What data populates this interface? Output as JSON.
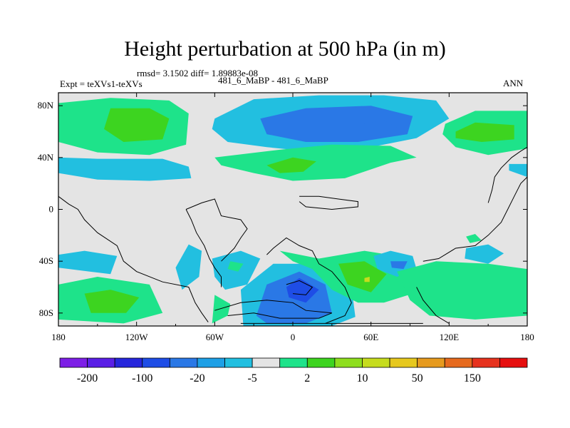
{
  "chart_data": {
    "type": "heatmap",
    "title": "Height perturbation at 500 hPa (in m)",
    "stats": "rmsd= 3.1502 diff= 1.89883e-08",
    "left_label": "Expt = teXVs1-teXVs",
    "center_label": "481_6_MaBP - 481_6_MaBP",
    "right_label": "ANN",
    "xlim": [
      -180,
      180
    ],
    "ylim": [
      -90,
      90
    ],
    "x_ticks": [
      {
        "value": -180,
        "label": "180"
      },
      {
        "value": -120,
        "label": "120W"
      },
      {
        "value": -60,
        "label": "60W"
      },
      {
        "value": 0,
        "label": "0"
      },
      {
        "value": 60,
        "label": "60E"
      },
      {
        "value": 120,
        "label": "120E"
      },
      {
        "value": 180,
        "label": "180"
      }
    ],
    "y_ticks": [
      {
        "value": 80,
        "label": "80N"
      },
      {
        "value": 40,
        "label": "40N"
      },
      {
        "value": 0,
        "label": "0"
      },
      {
        "value": -40,
        "label": "40S"
      },
      {
        "value": -80,
        "label": "80S"
      }
    ],
    "colorbar": {
      "colors": [
        "#7d1fe6",
        "#5a1fe6",
        "#2626dc",
        "#1e4de6",
        "#2a78e6",
        "#1ea0e6",
        "#22bfe0",
        "#e4e4e4",
        "#1ee38a",
        "#3dd420",
        "#8ede1e",
        "#c6dc1e",
        "#e6c81e",
        "#e69a1e",
        "#e66a1e",
        "#e6321e",
        "#e60f0f"
      ],
      "tick_labels": [
        "-200",
        "-100",
        "-20",
        "-5",
        "2",
        "10",
        "50",
        "150"
      ]
    },
    "regions": [
      {
        "level": 2,
        "value": "2 to 10",
        "points": [
          [
            -180,
            82
          ],
          [
            -140,
            86
          ],
          [
            -95,
            84
          ],
          [
            -80,
            74
          ],
          [
            -82,
            50
          ],
          [
            -110,
            42
          ],
          [
            -150,
            44
          ],
          [
            -180,
            52
          ]
        ]
      },
      {
        "level": 10,
        "value": "10 to 50",
        "points": [
          [
            -140,
            78
          ],
          [
            -110,
            78
          ],
          [
            -95,
            70
          ],
          [
            -100,
            54
          ],
          [
            -130,
            52
          ],
          [
            -145,
            62
          ]
        ]
      },
      {
        "level": -5,
        "value": "-5 to -2",
        "points": [
          [
            -180,
            40
          ],
          [
            -150,
            39
          ],
          [
            -100,
            39
          ],
          [
            -80,
            33
          ],
          [
            -78,
            24
          ],
          [
            -110,
            22
          ],
          [
            -150,
            23
          ],
          [
            -180,
            28
          ]
        ]
      },
      {
        "level": -5,
        "value": "-5 to -2",
        "points": [
          [
            -60,
            70
          ],
          [
            -30,
            85
          ],
          [
            20,
            88
          ],
          [
            70,
            88
          ],
          [
            110,
            84
          ],
          [
            120,
            70
          ],
          [
            95,
            55
          ],
          [
            60,
            48
          ],
          [
            30,
            45
          ],
          [
            10,
            45
          ],
          [
            -20,
            48
          ],
          [
            -50,
            52
          ],
          [
            -62,
            62
          ]
        ]
      },
      {
        "level": -20,
        "value": "-20 to -5",
        "points": [
          [
            -25,
            70
          ],
          [
            10,
            78
          ],
          [
            60,
            80
          ],
          [
            92,
            72
          ],
          [
            88,
            58
          ],
          [
            50,
            52
          ],
          [
            10,
            52
          ],
          [
            -20,
            58
          ]
        ]
      },
      {
        "level": -20,
        "value": "-20 to -5",
        "points": [
          [
            50,
            65
          ],
          [
            70,
            69
          ],
          [
            80,
            63
          ],
          [
            64,
            59
          ],
          [
            50,
            60
          ]
        ]
      },
      {
        "level": 2,
        "value": "2 to 10",
        "points": [
          [
            -60,
            40
          ],
          [
            -10,
            46
          ],
          [
            30,
            50
          ],
          [
            75,
            49
          ],
          [
            95,
            40
          ],
          [
            75,
            36
          ],
          [
            40,
            24
          ],
          [
            0,
            22
          ],
          [
            -30,
            28
          ],
          [
            -55,
            34
          ]
        ]
      },
      {
        "level": 10,
        "value": "10 to 50",
        "points": [
          [
            -20,
            34
          ],
          [
            0,
            40
          ],
          [
            18,
            37
          ],
          [
            8,
            29
          ],
          [
            -10,
            28
          ]
        ]
      },
      {
        "level": 2,
        "value": "2 to 10",
        "points": [
          [
            117,
            66
          ],
          [
            140,
            76
          ],
          [
            180,
            76
          ],
          [
            180,
            47
          ],
          [
            150,
            42
          ],
          [
            125,
            48
          ],
          [
            115,
            58
          ]
        ]
      },
      {
        "level": 10,
        "value": "10 to 50",
        "points": [
          [
            125,
            60
          ],
          [
            140,
            67
          ],
          [
            170,
            65
          ],
          [
            170,
            54
          ],
          [
            145,
            52
          ],
          [
            125,
            55
          ]
        ]
      },
      {
        "level": -5,
        "value": "-5 to -2",
        "points": [
          [
            166,
            35
          ],
          [
            180,
            35
          ],
          [
            180,
            25
          ],
          [
            166,
            30
          ]
        ]
      },
      {
        "level": -5,
        "value": "-5 to -2",
        "points": [
          [
            -180,
            -35
          ],
          [
            -160,
            -32
          ],
          [
            -135,
            -36
          ],
          [
            -140,
            -50
          ],
          [
            -180,
            -45
          ]
        ]
      },
      {
        "level": -5,
        "value": "-5 to -2",
        "points": [
          [
            -80,
            -27
          ],
          [
            -70,
            -32
          ],
          [
            -72,
            -52
          ],
          [
            -85,
            -62
          ],
          [
            -90,
            -45
          ]
        ]
      },
      {
        "level": -5,
        "value": "-5 to -2",
        "points": [
          [
            -62,
            -38
          ],
          [
            -40,
            -32
          ],
          [
            -25,
            -38
          ],
          [
            -35,
            -58
          ],
          [
            -52,
            -62
          ],
          [
            -60,
            -52
          ]
        ]
      },
      {
        "level": 2,
        "value": "2 to 10",
        "points": [
          [
            -48,
            -40
          ],
          [
            -38,
            -42
          ],
          [
            -42,
            -48
          ],
          [
            -50,
            -46
          ]
        ]
      },
      {
        "level": 2,
        "value": "2 to 10",
        "points": [
          [
            -180,
            -58
          ],
          [
            -150,
            -52
          ],
          [
            -110,
            -58
          ],
          [
            -100,
            -80
          ],
          [
            -130,
            -88
          ],
          [
            -180,
            -85
          ]
        ]
      },
      {
        "level": 10,
        "value": "10 to 50",
        "points": [
          [
            -160,
            -65
          ],
          [
            -140,
            -62
          ],
          [
            -118,
            -68
          ],
          [
            -128,
            -80
          ],
          [
            -155,
            -80
          ]
        ]
      },
      {
        "level": 2,
        "value": "2 to 10",
        "points": [
          [
            -62,
            -88
          ],
          [
            -50,
            -82
          ],
          [
            -48,
            -73
          ],
          [
            -60,
            -66
          ]
        ]
      },
      {
        "level": -5,
        "value": "-5 to -2",
        "points": [
          [
            -38,
            -90
          ],
          [
            -40,
            -62
          ],
          [
            -15,
            -42
          ],
          [
            20,
            -42
          ],
          [
            45,
            -60
          ],
          [
            48,
            -83
          ],
          [
            30,
            -90
          ]
        ]
      },
      {
        "level": -20,
        "value": "-20 to -5",
        "points": [
          [
            -28,
            -82
          ],
          [
            -20,
            -58
          ],
          [
            5,
            -48
          ],
          [
            25,
            -58
          ],
          [
            30,
            -80
          ],
          [
            10,
            -88
          ],
          [
            -20,
            -88
          ]
        ]
      },
      {
        "level": -100,
        "value": "-100 to -20",
        "points": [
          [
            -5,
            -60
          ],
          [
            5,
            -53
          ],
          [
            20,
            -62
          ],
          [
            10,
            -72
          ],
          [
            -3,
            -68
          ]
        ]
      },
      {
        "level": 2,
        "value": "2 to 10",
        "points": [
          [
            -10,
            -32
          ],
          [
            20,
            -38
          ],
          [
            55,
            -32
          ],
          [
            80,
            -36
          ],
          [
            95,
            -50
          ],
          [
            92,
            -65
          ],
          [
            70,
            -72
          ],
          [
            50,
            -72
          ],
          [
            30,
            -62
          ],
          [
            15,
            -46
          ],
          [
            0,
            -40
          ]
        ]
      },
      {
        "level": 10,
        "value": "10 to 50",
        "points": [
          [
            35,
            -42
          ],
          [
            55,
            -40
          ],
          [
            72,
            -50
          ],
          [
            60,
            -64
          ],
          [
            42,
            -58
          ]
        ]
      },
      {
        "level": 50,
        "value": "50 to 150",
        "points": [
          [
            55,
            -53
          ],
          [
            59,
            -52
          ],
          [
            59,
            -56
          ],
          [
            55,
            -56
          ]
        ]
      },
      {
        "level": -5,
        "value": "-5 to -2",
        "points": [
          [
            62,
            -36
          ],
          [
            75,
            -32
          ],
          [
            92,
            -36
          ],
          [
            95,
            -46
          ],
          [
            80,
            -52
          ],
          [
            65,
            -46
          ]
        ]
      },
      {
        "level": -20,
        "value": "-20 to -5",
        "points": [
          [
            75,
            -40
          ],
          [
            88,
            -40
          ],
          [
            85,
            -46
          ],
          [
            76,
            -45
          ]
        ]
      },
      {
        "level": 2,
        "value": "2 to 10",
        "points": [
          [
            80,
            -48
          ],
          [
            110,
            -40
          ],
          [
            150,
            -42
          ],
          [
            180,
            -46
          ],
          [
            180,
            -82
          ],
          [
            140,
            -85
          ],
          [
            105,
            -82
          ],
          [
            90,
            -70
          ]
        ]
      },
      {
        "level": 2,
        "value": "2 to 10",
        "points": [
          [
            133,
            -21
          ],
          [
            140,
            -19
          ],
          [
            145,
            -24
          ],
          [
            136,
            -26
          ]
        ]
      },
      {
        "level": -5,
        "value": "-5 to -2",
        "points": [
          [
            133,
            -30
          ],
          [
            150,
            -27
          ],
          [
            162,
            -34
          ],
          [
            150,
            -42
          ],
          [
            132,
            -38
          ]
        ]
      }
    ],
    "coastlines": [
      [
        [
          -180,
          10
        ],
        [
          -172,
          4
        ],
        [
          -165,
          0
        ],
        [
          -160,
          -8
        ],
        [
          -150,
          -18
        ],
        [
          -135,
          -28
        ],
        [
          -130,
          -40
        ],
        [
          -120,
          -48
        ],
        [
          -100,
          -56
        ],
        [
          -80,
          -60
        ],
        [
          -75,
          -72
        ],
        [
          -70,
          -80
        ],
        [
          -65,
          -87
        ]
      ],
      [
        [
          -82,
          0
        ],
        [
          -78,
          -8
        ],
        [
          -74,
          -18
        ],
        [
          -68,
          -28
        ],
        [
          -64,
          -38
        ],
        [
          -60,
          -45
        ],
        [
          -55,
          -52
        ],
        [
          -55,
          -60
        ]
      ],
      [
        [
          -82,
          0
        ],
        [
          -70,
          5
        ],
        [
          -60,
          8
        ],
        [
          -55,
          -5
        ],
        [
          -40,
          -8
        ],
        [
          -35,
          -15
        ],
        [
          -40,
          -22
        ],
        [
          -45,
          -30
        ],
        [
          -55,
          -40
        ]
      ],
      [
        [
          -20,
          -35
        ],
        [
          -15,
          -30
        ],
        [
          -5,
          -22
        ],
        [
          5,
          -28
        ],
        [
          15,
          -32
        ],
        [
          20,
          -42
        ],
        [
          30,
          -48
        ],
        [
          40,
          -60
        ],
        [
          45,
          -72
        ],
        [
          40,
          -82
        ],
        [
          25,
          -88
        ]
      ],
      [
        [
          -60,
          -78
        ],
        [
          -40,
          -72
        ],
        [
          -20,
          -70
        ],
        [
          0,
          -72
        ],
        [
          10,
          -78
        ],
        [
          30,
          -80
        ],
        [
          20,
          -84
        ],
        [
          -10,
          -84
        ],
        [
          -30,
          -80
        ],
        [
          -50,
          -82
        ]
      ],
      [
        [
          -5,
          -58
        ],
        [
          5,
          -55
        ],
        [
          15,
          -60
        ],
        [
          10,
          -66
        ],
        [
          0,
          -65
        ]
      ],
      [
        [
          -40,
          -88
        ],
        [
          100,
          -88
        ]
      ],
      [
        [
          5,
          10
        ],
        [
          20,
          10
        ],
        [
          35,
          8
        ],
        [
          50,
          6
        ],
        [
          50,
          2
        ],
        [
          30,
          0
        ],
        [
          10,
          2
        ],
        [
          5,
          6
        ]
      ],
      [
        [
          100,
          -40
        ],
        [
          112,
          -38
        ],
        [
          125,
          -30
        ],
        [
          140,
          -28
        ],
        [
          150,
          -20
        ],
        [
          160,
          -10
        ],
        [
          165,
          0
        ],
        [
          170,
          10
        ],
        [
          175,
          20
        ],
        [
          180,
          25
        ]
      ],
      [
        [
          150,
          5
        ],
        [
          153,
          15
        ],
        [
          155,
          25
        ],
        [
          160,
          32
        ],
        [
          168,
          40
        ],
        [
          175,
          45
        ],
        [
          180,
          48
        ]
      ],
      [
        [
          95,
          -60
        ],
        [
          100,
          -70
        ],
        [
          110,
          -82
        ],
        [
          120,
          -88
        ]
      ]
    ]
  }
}
